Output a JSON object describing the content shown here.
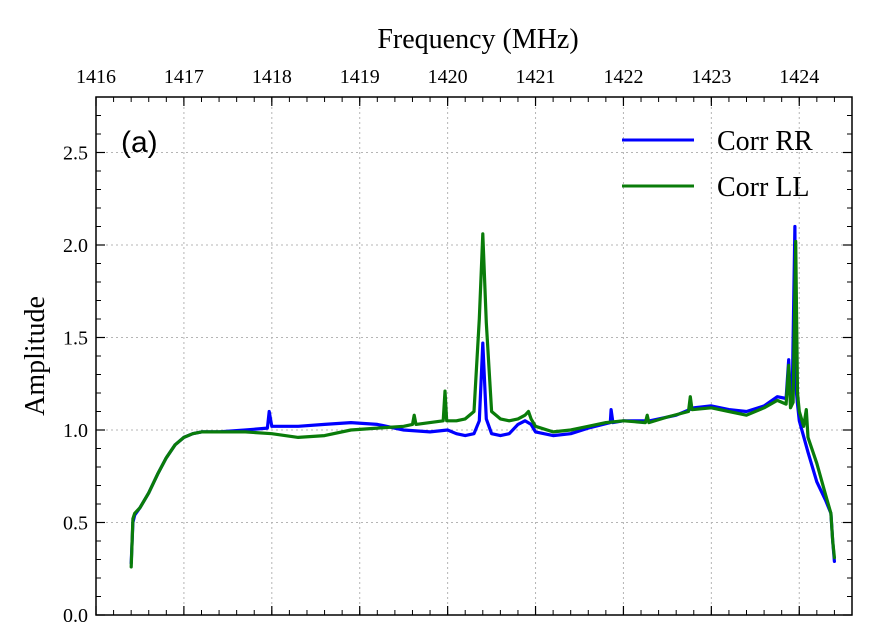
{
  "chart_data": {
    "type": "line",
    "panel_label": "(a)",
    "xlabel": "Frequency (MHz)",
    "ylabel": "Amplitude",
    "xaxis_position": "top",
    "xlim": [
      1416.0,
      1424.6
    ],
    "ylim": [
      0.0,
      2.8
    ],
    "xticks": [
      1416,
      1417,
      1418,
      1419,
      1420,
      1421,
      1422,
      1423,
      1424
    ],
    "yticks": [
      0.0,
      0.5,
      1.0,
      1.5,
      2.0,
      2.5
    ],
    "ytick_labels": [
      "0.0",
      "0.5",
      "1.0",
      "1.5",
      "2.0",
      "2.5"
    ],
    "grid": true,
    "legend_position": "top-right",
    "series": [
      {
        "name": "Corr RR",
        "color": "#0000ff",
        "x": [
          1416.4,
          1416.42,
          1416.44,
          1416.5,
          1416.6,
          1416.7,
          1416.8,
          1416.9,
          1417.0,
          1417.1,
          1417.2,
          1417.4,
          1417.7,
          1417.95,
          1417.97,
          1418.0,
          1418.3,
          1418.6,
          1418.9,
          1419.2,
          1419.5,
          1419.8,
          1420.0,
          1420.1,
          1420.2,
          1420.3,
          1420.36,
          1420.4,
          1420.44,
          1420.5,
          1420.6,
          1420.7,
          1420.8,
          1420.88,
          1420.95,
          1421.0,
          1421.2,
          1421.4,
          1421.6,
          1421.85,
          1421.86,
          1421.88,
          1422.0,
          1422.3,
          1422.6,
          1422.8,
          1423.0,
          1423.2,
          1423.4,
          1423.6,
          1423.75,
          1423.85,
          1423.88,
          1423.9,
          1423.92,
          1423.95,
          1423.96,
          1423.98,
          1424.0,
          1424.1,
          1424.2,
          1424.3,
          1424.36,
          1424.38,
          1424.4
        ],
        "y": [
          0.28,
          0.5,
          0.54,
          0.58,
          0.66,
          0.76,
          0.85,
          0.92,
          0.96,
          0.98,
          0.99,
          0.99,
          1.0,
          1.01,
          1.1,
          1.02,
          1.02,
          1.03,
          1.04,
          1.03,
          1.0,
          0.99,
          1.0,
          0.98,
          0.97,
          0.98,
          1.05,
          1.47,
          1.06,
          0.98,
          0.97,
          0.98,
          1.03,
          1.05,
          1.03,
          0.99,
          0.97,
          0.98,
          1.01,
          1.04,
          1.11,
          1.04,
          1.05,
          1.05,
          1.08,
          1.12,
          1.13,
          1.11,
          1.1,
          1.13,
          1.18,
          1.17,
          1.38,
          1.15,
          1.18,
          2.1,
          1.25,
          1.14,
          1.05,
          0.88,
          0.72,
          0.62,
          0.55,
          0.4,
          0.29
        ]
      },
      {
        "name": "Corr LL",
        "color": "#0a7c0a",
        "x": [
          1416.4,
          1416.42,
          1416.44,
          1416.5,
          1416.6,
          1416.7,
          1416.8,
          1416.9,
          1417.0,
          1417.1,
          1417.2,
          1417.4,
          1417.7,
          1418.0,
          1418.3,
          1418.6,
          1418.9,
          1419.2,
          1419.5,
          1419.6,
          1419.62,
          1419.64,
          1419.8,
          1419.95,
          1419.97,
          1419.99,
          1420.1,
          1420.2,
          1420.3,
          1420.36,
          1420.4,
          1420.44,
          1420.5,
          1420.6,
          1420.7,
          1420.8,
          1420.88,
          1420.92,
          1420.95,
          1421.0,
          1421.2,
          1421.4,
          1421.6,
          1421.8,
          1422.0,
          1422.25,
          1422.27,
          1422.29,
          1422.5,
          1422.74,
          1422.76,
          1422.78,
          1423.0,
          1423.2,
          1423.4,
          1423.6,
          1423.75,
          1423.85,
          1423.88,
          1423.9,
          1423.93,
          1423.96,
          1423.98,
          1424.0,
          1424.05,
          1424.08,
          1424.1,
          1424.2,
          1424.3,
          1424.36,
          1424.38,
          1424.4
        ],
        "y": [
          0.26,
          0.52,
          0.55,
          0.58,
          0.66,
          0.76,
          0.85,
          0.92,
          0.96,
          0.98,
          0.99,
          0.99,
          0.99,
          0.98,
          0.96,
          0.97,
          1.0,
          1.01,
          1.02,
          1.03,
          1.08,
          1.03,
          1.04,
          1.05,
          1.21,
          1.05,
          1.05,
          1.06,
          1.1,
          1.6,
          2.06,
          1.58,
          1.1,
          1.06,
          1.05,
          1.06,
          1.08,
          1.1,
          1.06,
          1.02,
          0.99,
          1.0,
          1.02,
          1.04,
          1.05,
          1.04,
          1.08,
          1.04,
          1.07,
          1.1,
          1.18,
          1.11,
          1.12,
          1.1,
          1.08,
          1.12,
          1.16,
          1.14,
          1.35,
          1.12,
          1.15,
          2.02,
          1.2,
          1.1,
          1.02,
          1.11,
          0.96,
          0.82,
          0.65,
          0.55,
          0.4,
          0.31
        ]
      }
    ]
  }
}
